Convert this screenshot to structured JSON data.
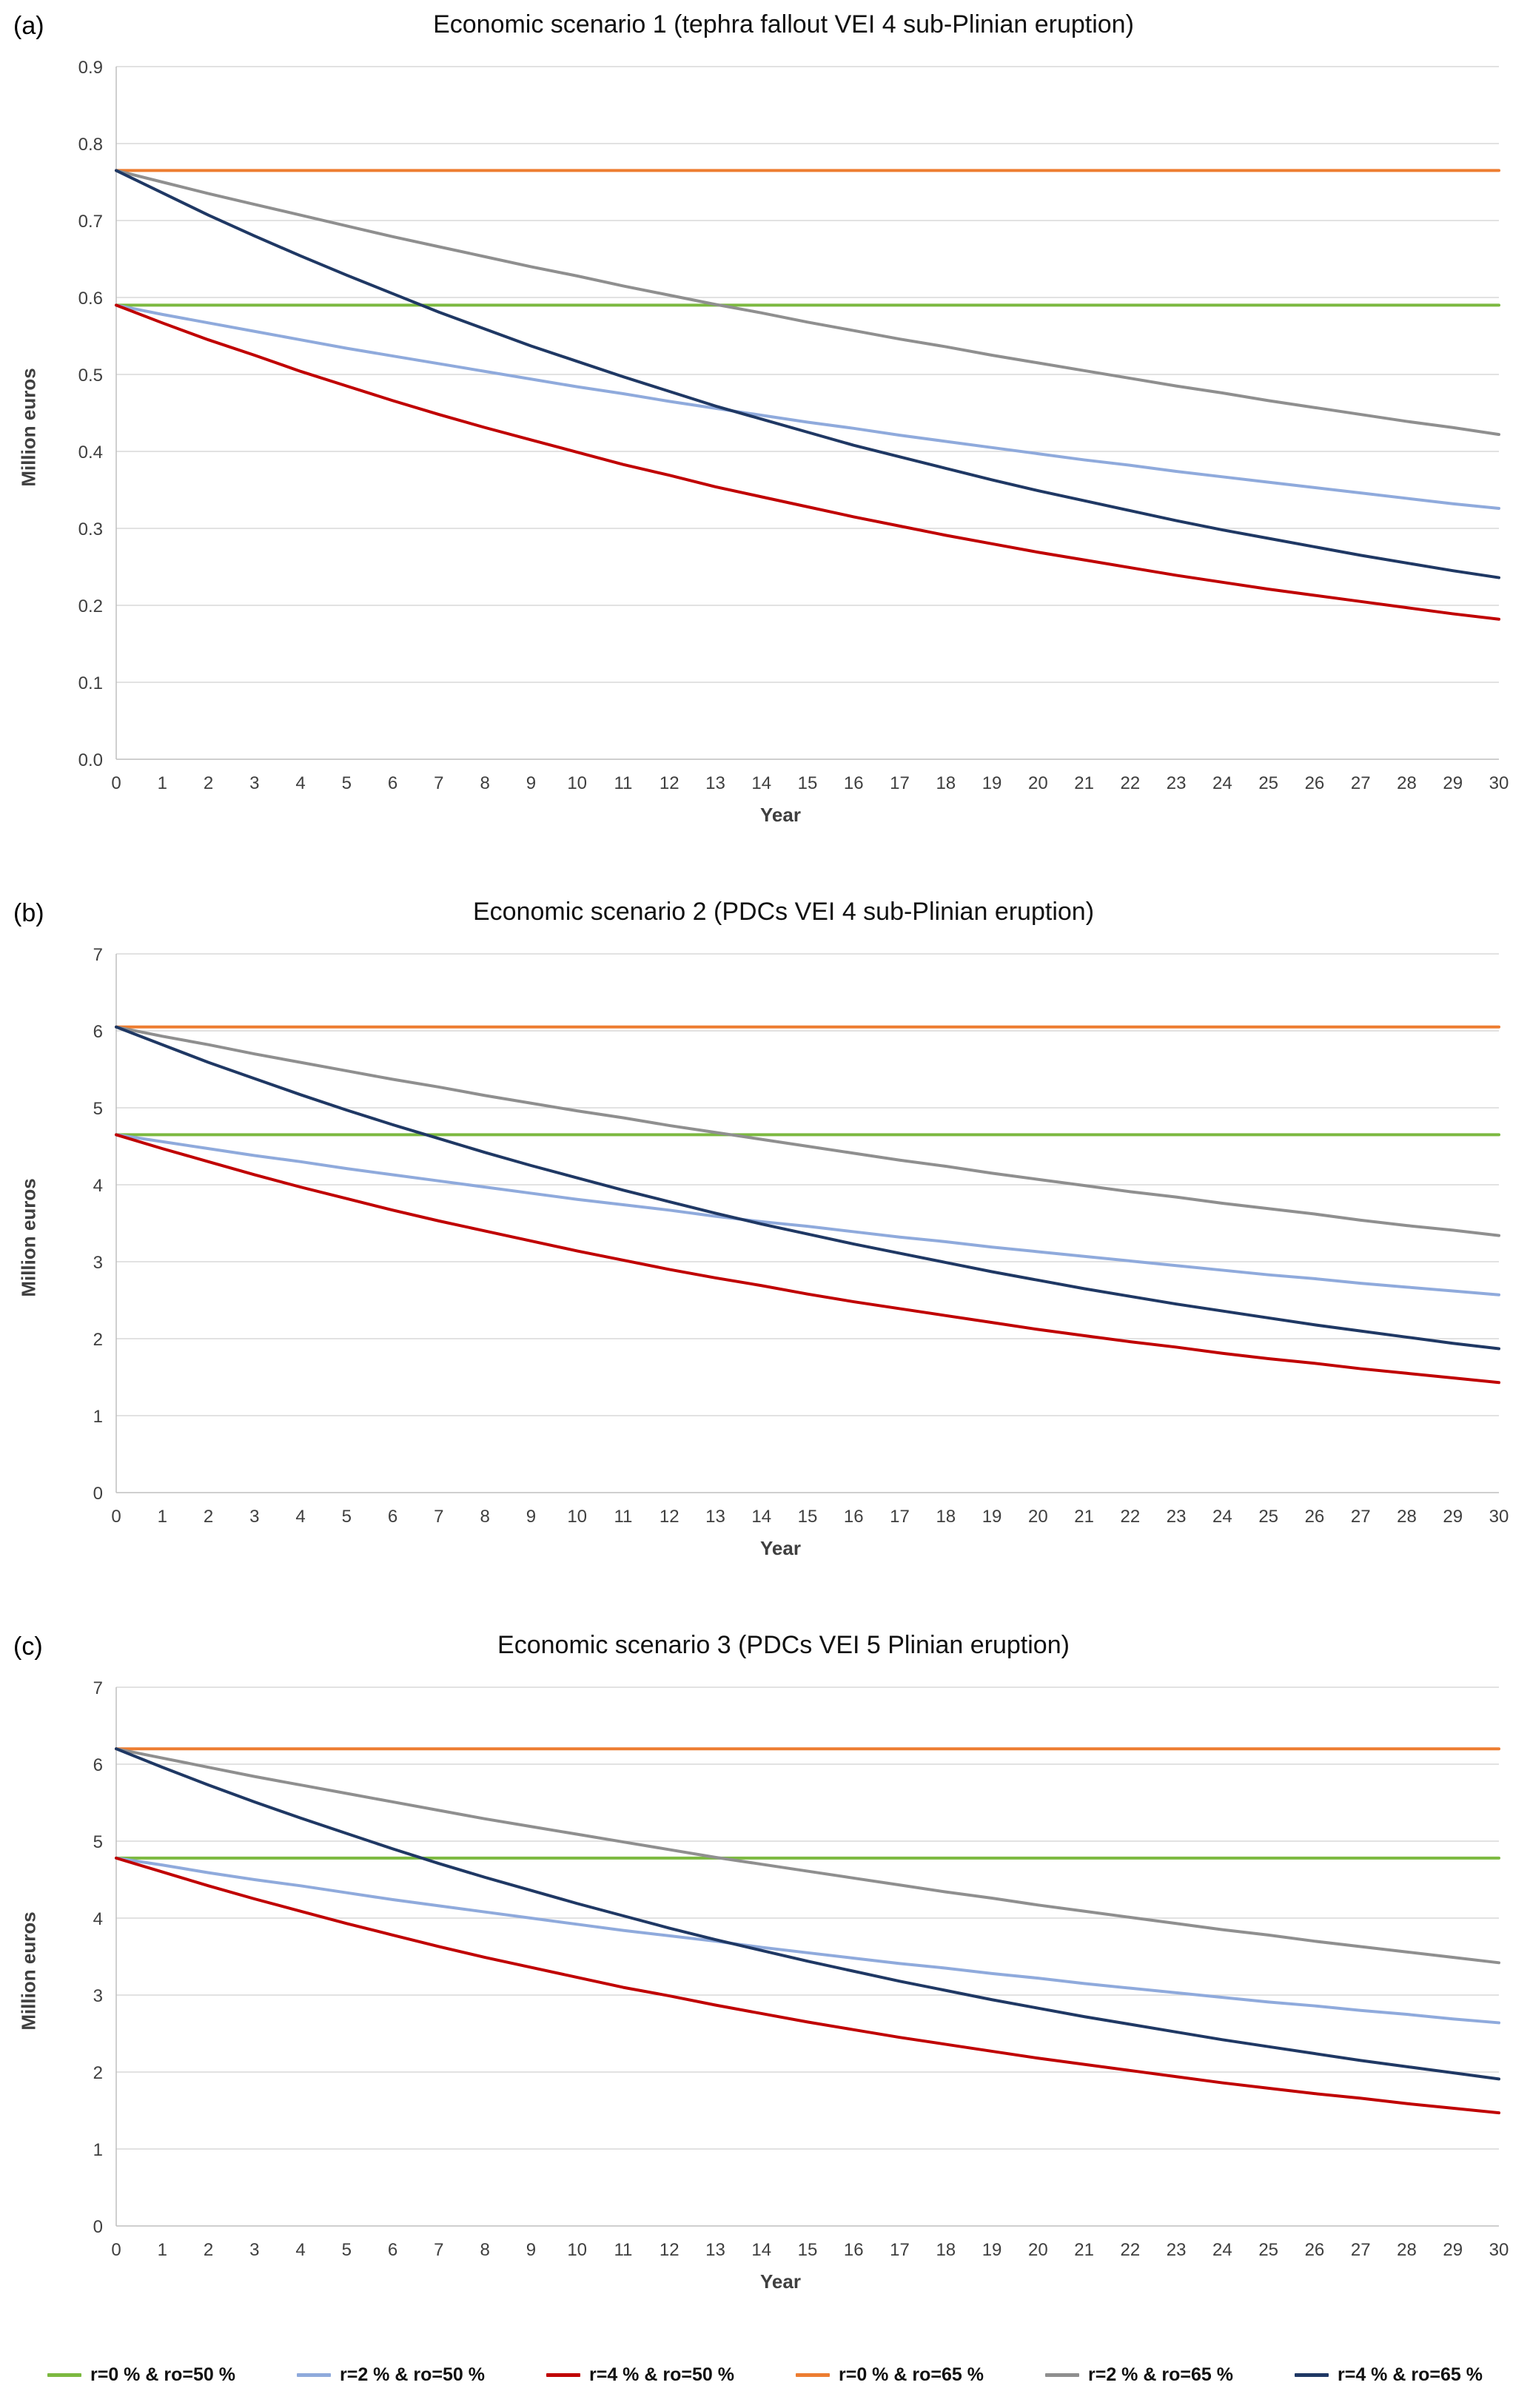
{
  "legend": {
    "items": [
      {
        "label": "r=0 % & ro=50 %",
        "color": "#7CB940"
      },
      {
        "label": "r=2 % & ro=50 %",
        "color": "#8FAADC"
      },
      {
        "label": "r=4 % & ro=50 %",
        "color": "#C00000"
      },
      {
        "label": "r=0 % & ro=65 %",
        "color": "#ED7D31"
      },
      {
        "label": "r=2 % & ro=65 %",
        "color": "#8F8F8F"
      },
      {
        "label": "r=4 % & ro=65 %",
        "color": "#1F3864"
      }
    ]
  },
  "chart_data": [
    {
      "type": "line",
      "panel_label": "(a)",
      "title": "Economic scenario 1 (tephra fallout VEI 4 sub-Plinian eruption)",
      "xlabel": "Year",
      "ylabel": "Million euros",
      "ylim": [
        0,
        0.9
      ],
      "grid": true,
      "legend_position": "bottom-shared",
      "ytick_labels": [
        "0.0",
        "0.1",
        "0.2",
        "0.3",
        "0.4",
        "0.5",
        "0.6",
        "0.7",
        "0.8",
        "0.9"
      ],
      "xtick_labels": [
        "0",
        "1",
        "2",
        "3",
        "4",
        "5",
        "6",
        "7",
        "8",
        "9",
        "10",
        "11",
        "12",
        "13",
        "14",
        "15",
        "16",
        "17",
        "18",
        "19",
        "20",
        "21",
        "22",
        "23",
        "24",
        "25",
        "26",
        "27",
        "28",
        "29",
        "30"
      ],
      "series": [
        {
          "name": "r=0 % & ro=50 %",
          "color": "#7CB940",
          "values": [
            0.59,
            0.59,
            0.59,
            0.59,
            0.59,
            0.59,
            0.59,
            0.59,
            0.59,
            0.59,
            0.59,
            0.59,
            0.59,
            0.59,
            0.59,
            0.59,
            0.59,
            0.59,
            0.59,
            0.59,
            0.59,
            0.59,
            0.59,
            0.59,
            0.59,
            0.59,
            0.59,
            0.59,
            0.59,
            0.59,
            0.59
          ]
        },
        {
          "name": "r=2 % & ro=50 %",
          "color": "#8FAADC",
          "values": [
            0.59,
            0.578,
            0.567,
            0.556,
            0.545,
            0.534,
            0.524,
            0.514,
            0.504,
            0.494,
            0.484,
            0.475,
            0.465,
            0.456,
            0.447,
            0.438,
            0.43,
            0.421,
            0.413,
            0.405,
            0.397,
            0.389,
            0.382,
            0.374,
            0.367,
            0.36,
            0.353,
            0.346,
            0.339,
            0.332,
            0.326
          ]
        },
        {
          "name": "r=4 % & ro=50 %",
          "color": "#C00000",
          "values": [
            0.59,
            0.567,
            0.545,
            0.525,
            0.504,
            0.485,
            0.466,
            0.448,
            0.431,
            0.415,
            0.399,
            0.383,
            0.369,
            0.354,
            0.341,
            0.328,
            0.315,
            0.303,
            0.291,
            0.28,
            0.269,
            0.259,
            0.249,
            0.239,
            0.23,
            0.221,
            0.213,
            0.205,
            0.197,
            0.189,
            0.182
          ]
        },
        {
          "name": "r=0 % & ro=65 %",
          "color": "#ED7D31",
          "values": [
            0.765,
            0.765,
            0.765,
            0.765,
            0.765,
            0.765,
            0.765,
            0.765,
            0.765,
            0.765,
            0.765,
            0.765,
            0.765,
            0.765,
            0.765,
            0.765,
            0.765,
            0.765,
            0.765,
            0.765,
            0.765,
            0.765,
            0.765,
            0.765,
            0.765,
            0.765,
            0.765,
            0.765,
            0.765,
            0.765,
            0.765
          ]
        },
        {
          "name": "r=2 % & ro=65 %",
          "color": "#8F8F8F",
          "values": [
            0.765,
            0.75,
            0.735,
            0.721,
            0.707,
            0.693,
            0.679,
            0.666,
            0.653,
            0.64,
            0.628,
            0.615,
            0.603,
            0.591,
            0.58,
            0.568,
            0.557,
            0.546,
            0.536,
            0.525,
            0.515,
            0.505,
            0.495,
            0.485,
            0.476,
            0.466,
            0.457,
            0.448,
            0.439,
            0.431,
            0.422
          ]
        },
        {
          "name": "r=4 % & ro=65 %",
          "color": "#1F3864",
          "values": [
            0.765,
            0.736,
            0.707,
            0.68,
            0.654,
            0.629,
            0.605,
            0.581,
            0.559,
            0.537,
            0.517,
            0.497,
            0.478,
            0.459,
            0.442,
            0.425,
            0.408,
            0.393,
            0.378,
            0.363,
            0.349,
            0.336,
            0.323,
            0.31,
            0.298,
            0.287,
            0.276,
            0.265,
            0.255,
            0.245,
            0.236
          ]
        }
      ]
    },
    {
      "type": "line",
      "panel_label": "(b)",
      "title": "Economic scenario 2 (PDCs VEI 4 sub-Plinian eruption)",
      "xlabel": "Year",
      "ylabel": "Million euros",
      "ylim": [
        0,
        7
      ],
      "grid": true,
      "legend_position": "bottom-shared",
      "ytick_labels": [
        "0",
        "1",
        "2",
        "3",
        "4",
        "5",
        "6",
        "7"
      ],
      "xtick_labels": [
        "0",
        "1",
        "2",
        "3",
        "4",
        "5",
        "6",
        "7",
        "8",
        "9",
        "10",
        "11",
        "12",
        "13",
        "14",
        "15",
        "16",
        "17",
        "18",
        "19",
        "20",
        "21",
        "22",
        "23",
        "24",
        "25",
        "26",
        "27",
        "28",
        "29",
        "30"
      ],
      "series": [
        {
          "name": "r=0 % & ro=50 %",
          "color": "#7CB940",
          "values": [
            4.65,
            4.65,
            4.65,
            4.65,
            4.65,
            4.65,
            4.65,
            4.65,
            4.65,
            4.65,
            4.65,
            4.65,
            4.65,
            4.65,
            4.65,
            4.65,
            4.65,
            4.65,
            4.65,
            4.65,
            4.65,
            4.65,
            4.65,
            4.65,
            4.65,
            4.65,
            4.65,
            4.65,
            4.65,
            4.65,
            4.65
          ]
        },
        {
          "name": "r=2 % & ro=50 %",
          "color": "#8FAADC",
          "values": [
            4.65,
            4.56,
            4.47,
            4.38,
            4.3,
            4.21,
            4.13,
            4.05,
            3.97,
            3.89,
            3.81,
            3.74,
            3.67,
            3.59,
            3.52,
            3.46,
            3.39,
            3.32,
            3.26,
            3.19,
            3.13,
            3.07,
            3.01,
            2.95,
            2.89,
            2.83,
            2.78,
            2.72,
            2.67,
            2.62,
            2.57
          ]
        },
        {
          "name": "r=4 % & ro=50 %",
          "color": "#C00000",
          "values": [
            4.65,
            4.47,
            4.3,
            4.13,
            3.97,
            3.82,
            3.67,
            3.53,
            3.4,
            3.27,
            3.14,
            3.02,
            2.9,
            2.79,
            2.69,
            2.58,
            2.48,
            2.39,
            2.3,
            2.21,
            2.12,
            2.04,
            1.96,
            1.89,
            1.81,
            1.74,
            1.68,
            1.61,
            1.55,
            1.49,
            1.43
          ]
        },
        {
          "name": "r=0 % & ro=65 %",
          "color": "#ED7D31",
          "values": [
            6.05,
            6.05,
            6.05,
            6.05,
            6.05,
            6.05,
            6.05,
            6.05,
            6.05,
            6.05,
            6.05,
            6.05,
            6.05,
            6.05,
            6.05,
            6.05,
            6.05,
            6.05,
            6.05,
            6.05,
            6.05,
            6.05,
            6.05,
            6.05,
            6.05,
            6.05,
            6.05,
            6.05,
            6.05,
            6.05,
            6.05
          ]
        },
        {
          "name": "r=2 % & ro=65 %",
          "color": "#8F8F8F",
          "values": [
            6.05,
            5.93,
            5.82,
            5.7,
            5.59,
            5.48,
            5.37,
            5.27,
            5.16,
            5.06,
            4.96,
            4.87,
            4.77,
            4.68,
            4.59,
            4.5,
            4.41,
            4.32,
            4.24,
            4.15,
            4.07,
            3.99,
            3.91,
            3.84,
            3.76,
            3.69,
            3.62,
            3.54,
            3.47,
            3.41,
            3.34
          ]
        },
        {
          "name": "r=4 % & ro=65 %",
          "color": "#1F3864",
          "values": [
            6.05,
            5.82,
            5.59,
            5.38,
            5.17,
            4.97,
            4.78,
            4.6,
            4.42,
            4.25,
            4.09,
            3.93,
            3.78,
            3.63,
            3.49,
            3.36,
            3.23,
            3.11,
            2.99,
            2.87,
            2.76,
            2.65,
            2.55,
            2.45,
            2.36,
            2.27,
            2.18,
            2.1,
            2.02,
            1.94,
            1.87
          ]
        }
      ]
    },
    {
      "type": "line",
      "panel_label": "(c)",
      "title": "Economic scenario 3 (PDCs VEI 5 Plinian eruption)",
      "xlabel": "Year",
      "ylabel": "Million euros",
      "ylim": [
        0,
        7
      ],
      "grid": true,
      "legend_position": "bottom-shared",
      "ytick_labels": [
        "0",
        "1",
        "2",
        "3",
        "4",
        "5",
        "6",
        "7"
      ],
      "xtick_labels": [
        "0",
        "1",
        "2",
        "3",
        "4",
        "5",
        "6",
        "7",
        "8",
        "9",
        "10",
        "11",
        "12",
        "13",
        "14",
        "15",
        "16",
        "17",
        "18",
        "19",
        "20",
        "21",
        "22",
        "23",
        "24",
        "25",
        "26",
        "27",
        "28",
        "29",
        "30"
      ],
      "series": [
        {
          "name": "r=0 % & ro=50 %",
          "color": "#7CB940",
          "values": [
            4.78,
            4.78,
            4.78,
            4.78,
            4.78,
            4.78,
            4.78,
            4.78,
            4.78,
            4.78,
            4.78,
            4.78,
            4.78,
            4.78,
            4.78,
            4.78,
            4.78,
            4.78,
            4.78,
            4.78,
            4.78,
            4.78,
            4.78,
            4.78,
            4.78,
            4.78,
            4.78,
            4.78,
            4.78,
            4.78,
            4.78
          ]
        },
        {
          "name": "r=2 % & ro=50 %",
          "color": "#8FAADC",
          "values": [
            4.78,
            4.69,
            4.59,
            4.5,
            4.42,
            4.33,
            4.24,
            4.16,
            4.08,
            4.0,
            3.92,
            3.84,
            3.77,
            3.7,
            3.62,
            3.55,
            3.48,
            3.41,
            3.35,
            3.28,
            3.22,
            3.15,
            3.09,
            3.03,
            2.97,
            2.91,
            2.86,
            2.8,
            2.75,
            2.69,
            2.64
          ]
        },
        {
          "name": "r=4 % & ro=50 %",
          "color": "#C00000",
          "values": [
            4.78,
            4.6,
            4.42,
            4.25,
            4.09,
            3.93,
            3.78,
            3.63,
            3.49,
            3.36,
            3.23,
            3.1,
            2.99,
            2.87,
            2.76,
            2.65,
            2.55,
            2.45,
            2.36,
            2.27,
            2.18,
            2.1,
            2.02,
            1.94,
            1.86,
            1.79,
            1.72,
            1.66,
            1.59,
            1.53,
            1.47
          ]
        },
        {
          "name": "r=0 % & ro=65 %",
          "color": "#ED7D31",
          "values": [
            6.2,
            6.2,
            6.2,
            6.2,
            6.2,
            6.2,
            6.2,
            6.2,
            6.2,
            6.2,
            6.2,
            6.2,
            6.2,
            6.2,
            6.2,
            6.2,
            6.2,
            6.2,
            6.2,
            6.2,
            6.2,
            6.2,
            6.2,
            6.2,
            6.2,
            6.2,
            6.2,
            6.2,
            6.2,
            6.2,
            6.2
          ]
        },
        {
          "name": "r=2 % & ro=65 %",
          "color": "#8F8F8F",
          "values": [
            6.2,
            6.08,
            5.96,
            5.84,
            5.73,
            5.62,
            5.51,
            5.4,
            5.29,
            5.19,
            5.09,
            4.99,
            4.89,
            4.79,
            4.7,
            4.61,
            4.52,
            4.43,
            4.34,
            4.26,
            4.17,
            4.09,
            4.01,
            3.93,
            3.85,
            3.78,
            3.7,
            3.63,
            3.56,
            3.49,
            3.42
          ]
        },
        {
          "name": "r=4 % & ro=65 %",
          "color": "#1F3864",
          "values": [
            6.2,
            5.96,
            5.73,
            5.51,
            5.3,
            5.1,
            4.9,
            4.71,
            4.53,
            4.36,
            4.19,
            4.03,
            3.87,
            3.72,
            3.58,
            3.44,
            3.31,
            3.18,
            3.06,
            2.94,
            2.83,
            2.72,
            2.62,
            2.52,
            2.42,
            2.33,
            2.24,
            2.15,
            2.07,
            1.99,
            1.91
          ]
        }
      ]
    }
  ]
}
